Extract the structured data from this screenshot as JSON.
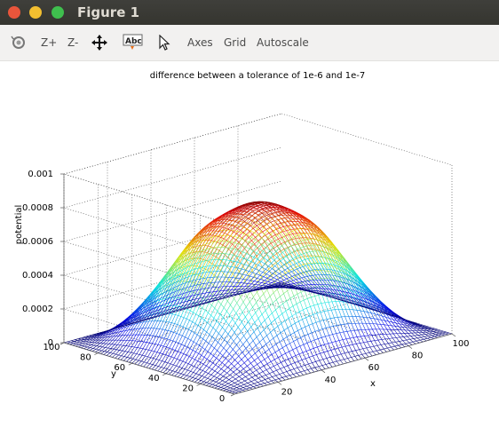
{
  "window": {
    "title": "Figure 1"
  },
  "toolbar": {
    "zoom_in_label": "Z+",
    "zoom_out_label": "Z-",
    "axes_label": "Axes",
    "grid_label": "Grid",
    "autoscale_label": "Autoscale",
    "text_tool_label": "Abc"
  },
  "colors": {
    "low": "#0000cc",
    "mid": "#33ddff",
    "high": "#cc0000"
  },
  "chart_data": {
    "type": "surface",
    "title": "difference between a tolerance of 1e-6 and 1e-7",
    "xlabel": "x",
    "ylabel": "y",
    "zlabel": "potential",
    "xlim": [
      0,
      100
    ],
    "ylim": [
      0,
      100
    ],
    "zlim": [
      0,
      0.001
    ],
    "x_ticks": [
      "20",
      "40",
      "60",
      "80",
      "100"
    ],
    "y_ticks": [
      "0",
      "20",
      "40",
      "60",
      "80",
      "100"
    ],
    "z_ticks": [
      "0",
      "0.0002",
      "0.0004",
      "0.0006",
      "0.0008",
      "0.001"
    ],
    "peak_value": 0.0008,
    "grid": true,
    "colormap": "jet",
    "mesh_size": 100
  }
}
